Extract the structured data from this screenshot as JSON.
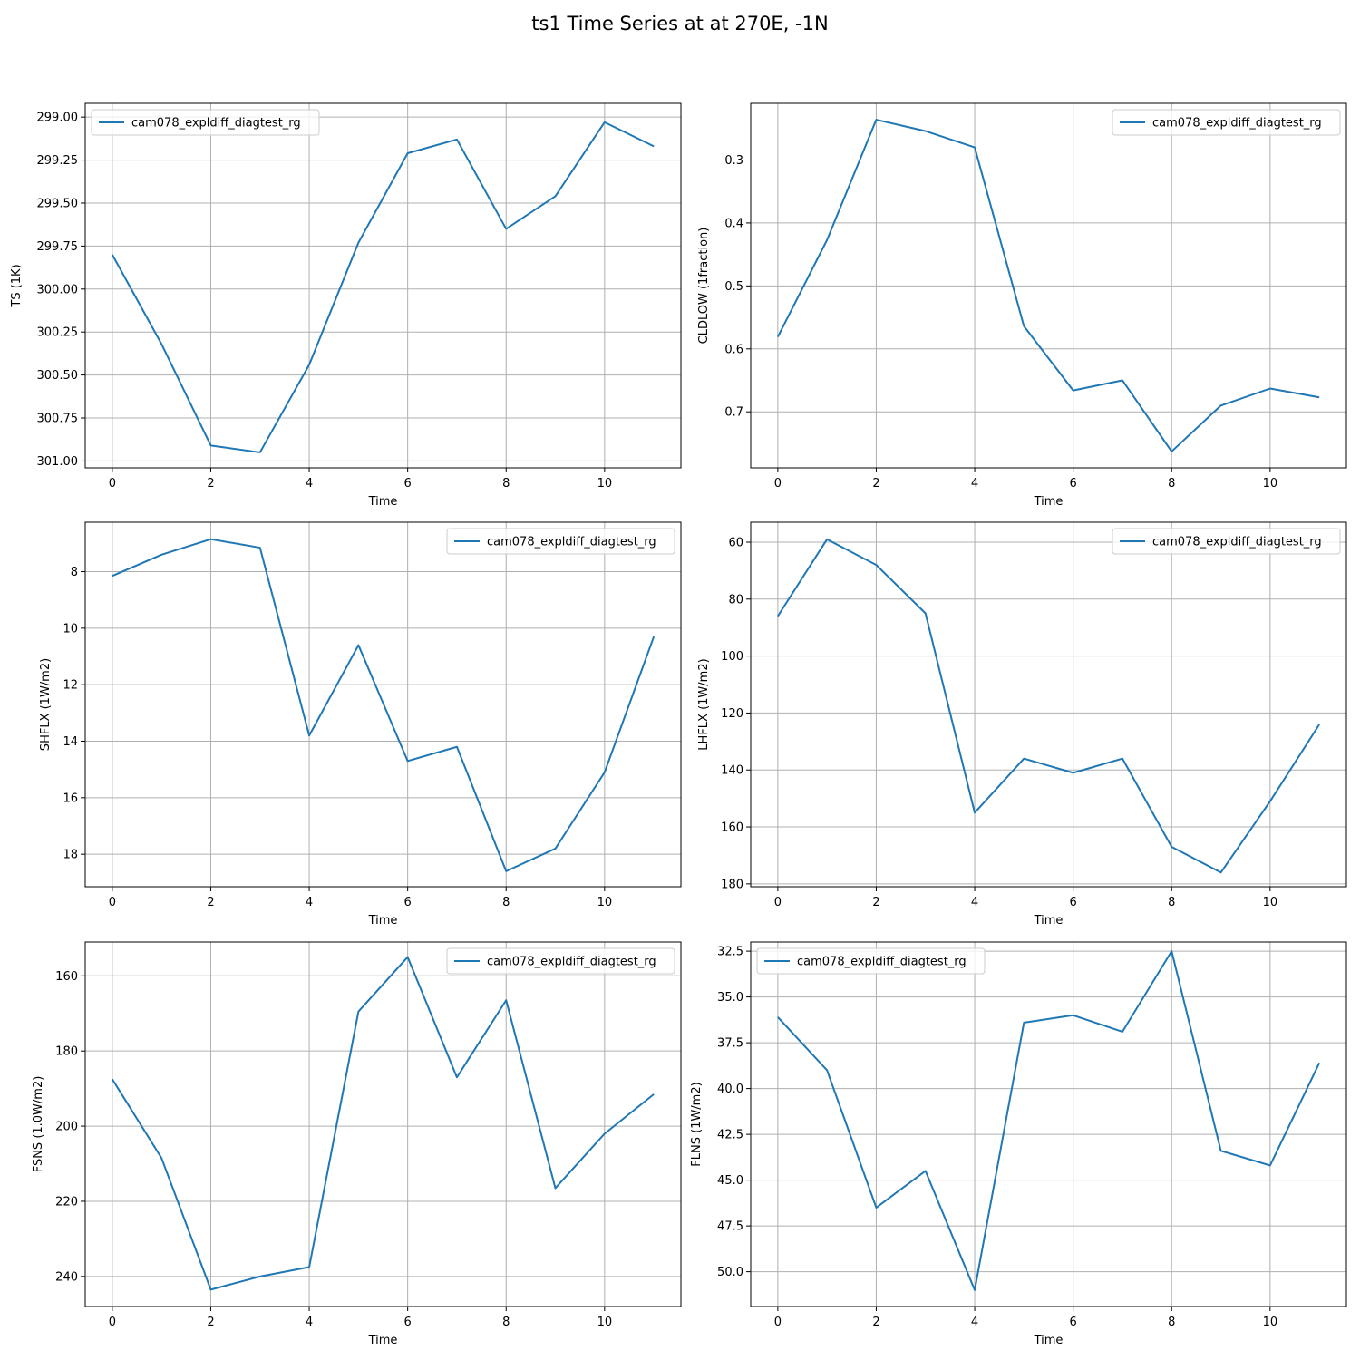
{
  "figure": {
    "title": "ts1 Time Series at at 270E, -1N"
  },
  "style": {
    "line_color": "#1f77b4",
    "grid_color": "#b0b0b0"
  },
  "chart_data": [
    {
      "type": "line",
      "xlabel": "Time",
      "ylabel": "TS (1K)",
      "y_inverted": true,
      "xlim": [
        -0.55,
        11.55
      ],
      "ylim": [
        301.04,
        298.92
      ],
      "xticks": [
        0,
        2,
        4,
        6,
        8,
        10
      ],
      "yticks": [
        299.0,
        299.25,
        299.5,
        299.75,
        300.0,
        300.25,
        300.5,
        300.75,
        301.0
      ],
      "ytick_labels": [
        "299.00",
        "299.25",
        "299.50",
        "299.75",
        "300.00",
        "300.25",
        "300.50",
        "300.75",
        "301.00"
      ],
      "legend_position": "upper-left",
      "grid": true,
      "series": [
        {
          "name": "cam078_expldiff_diagtest_rg",
          "x": [
            0,
            1,
            2,
            3,
            4,
            5,
            6,
            7,
            8,
            9,
            10,
            11
          ],
          "values": [
            299.8,
            300.32,
            300.91,
            300.95,
            300.44,
            299.73,
            299.21,
            299.13,
            299.65,
            299.46,
            299.03,
            299.17
          ]
        }
      ]
    },
    {
      "type": "line",
      "xlabel": "Time",
      "ylabel": "CLDLOW (1fraction)",
      "y_inverted": true,
      "xlim": [
        -0.55,
        11.55
      ],
      "ylim": [
        0.789,
        0.21
      ],
      "xticks": [
        0,
        2,
        4,
        6,
        8,
        10
      ],
      "yticks": [
        0.3,
        0.4,
        0.5,
        0.6,
        0.7
      ],
      "ytick_labels": [
        "0.3",
        "0.4",
        "0.5",
        "0.6",
        "0.7"
      ],
      "legend_position": "upper-right",
      "grid": true,
      "series": [
        {
          "name": "cam078_expldiff_diagtest_rg",
          "x": [
            0,
            1,
            2,
            3,
            4,
            5,
            6,
            7,
            8,
            9,
            10,
            11
          ],
          "values": [
            0.581,
            0.427,
            0.236,
            0.254,
            0.28,
            0.564,
            0.666,
            0.65,
            0.763,
            0.69,
            0.663,
            0.677
          ]
        }
      ]
    },
    {
      "type": "line",
      "xlabel": "Time",
      "ylabel": "SHFLX (1W/m2)",
      "y_inverted": true,
      "xlim": [
        -0.55,
        11.55
      ],
      "ylim": [
        19.15,
        6.25
      ],
      "xticks": [
        0,
        2,
        4,
        6,
        8,
        10
      ],
      "yticks": [
        8,
        10,
        12,
        14,
        16,
        18
      ],
      "ytick_labels": [
        "8",
        "10",
        "12",
        "14",
        "16",
        "18"
      ],
      "legend_position": "upper-right",
      "grid": true,
      "series": [
        {
          "name": "cam078_expldiff_diagtest_rg",
          "x": [
            0,
            1,
            2,
            3,
            4,
            5,
            6,
            7,
            8,
            9,
            10,
            11
          ],
          "values": [
            8.15,
            7.4,
            6.85,
            7.15,
            13.8,
            10.6,
            14.7,
            14.2,
            18.6,
            17.8,
            15.1,
            10.3
          ]
        }
      ]
    },
    {
      "type": "line",
      "xlabel": "Time",
      "ylabel": "LHFLX (1W/m2)",
      "y_inverted": true,
      "xlim": [
        -0.55,
        11.55
      ],
      "ylim": [
        181.0,
        53.0
      ],
      "xticks": [
        0,
        2,
        4,
        6,
        8,
        10
      ],
      "yticks": [
        60,
        80,
        100,
        120,
        140,
        160,
        180
      ],
      "ytick_labels": [
        "60",
        "80",
        "100",
        "120",
        "140",
        "160",
        "180"
      ],
      "legend_position": "upper-right",
      "grid": true,
      "series": [
        {
          "name": "cam078_expldiff_diagtest_rg",
          "x": [
            0,
            1,
            2,
            3,
            4,
            5,
            6,
            7,
            8,
            9,
            10,
            11
          ],
          "values": [
            86,
            59,
            68,
            85,
            155,
            136,
            141,
            136,
            167,
            176,
            151,
            124
          ]
        }
      ]
    },
    {
      "type": "line",
      "xlabel": "Time",
      "ylabel": "FSNS (1.0W/m2)",
      "y_inverted": true,
      "xlim": [
        -0.55,
        11.55
      ],
      "ylim": [
        248.0,
        151.0
      ],
      "xticks": [
        0,
        2,
        4,
        6,
        8,
        10
      ],
      "yticks": [
        160,
        180,
        200,
        220,
        240
      ],
      "ytick_labels": [
        "160",
        "180",
        "200",
        "220",
        "240"
      ],
      "legend_position": "upper-right",
      "grid": true,
      "series": [
        {
          "name": "cam078_expldiff_diagtest_rg",
          "x": [
            0,
            1,
            2,
            3,
            4,
            5,
            6,
            7,
            8,
            9,
            10,
            11
          ],
          "values": [
            187.5,
            208.5,
            243.5,
            240.0,
            237.5,
            169.5,
            155.0,
            187.0,
            166.5,
            216.5,
            202.0,
            191.5
          ]
        }
      ]
    },
    {
      "type": "line",
      "xlabel": "Time",
      "ylabel": "FLNS (1W/m2)",
      "y_inverted": true,
      "xlim": [
        -0.55,
        11.55
      ],
      "ylim": [
        51.9,
        32.0
      ],
      "xticks": [
        0,
        2,
        4,
        6,
        8,
        10
      ],
      "yticks": [
        32.5,
        35.0,
        37.5,
        40.0,
        42.5,
        45.0,
        47.5,
        50.0
      ],
      "ytick_labels": [
        "32.5",
        "35.0",
        "37.5",
        "40.0",
        "42.5",
        "45.0",
        "47.5",
        "50.0"
      ],
      "legend_position": "upper-left",
      "grid": true,
      "series": [
        {
          "name": "cam078_expldiff_diagtest_rg",
          "x": [
            0,
            1,
            2,
            3,
            4,
            5,
            6,
            7,
            8,
            9,
            10,
            11
          ],
          "values": [
            36.1,
            39.0,
            46.5,
            44.5,
            51.0,
            36.4,
            36.0,
            36.9,
            32.5,
            43.4,
            44.2,
            38.6
          ]
        }
      ]
    }
  ]
}
